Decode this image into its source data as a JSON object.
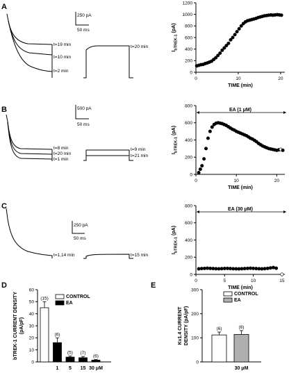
{
  "figure": {
    "panel_labels": [
      "A",
      "B",
      "C",
      "D",
      "E"
    ]
  },
  "traces": {
    "A": {
      "scale_current": "250 pA",
      "scale_time": "50 ms",
      "left_labels": [
        "t=19 min",
        "t=10 min",
        "t=2 min"
      ],
      "right_labels": [
        "t=20 min"
      ]
    },
    "B": {
      "scale_current": "500 pA",
      "scale_time": "50 ms",
      "left_labels": [
        "t=8 min",
        "t=20 min",
        "t=1 min"
      ],
      "right_labels": [
        "t=9 min",
        "t=21 min"
      ]
    },
    "C": {
      "scale_current": "250 pA",
      "scale_time": "50 ms",
      "left_labels": [
        "t=1,14 min"
      ],
      "right_labels": [
        "t=15 min"
      ]
    }
  },
  "chart_data": [
    {
      "id": "A",
      "type": "scatter",
      "ylabel_main": "I",
      "ylabel_sub": "bTREK-1",
      "ylabel_unit": "(pA)",
      "xlabel": "TIME (min)",
      "xlim": [
        0,
        21
      ],
      "ylim": [
        0,
        1200
      ],
      "xticks": [
        0,
        10,
        20
      ],
      "yticks": [
        0,
        200,
        400,
        600,
        800,
        1000,
        1200
      ],
      "annotation": "",
      "x": [
        0.2,
        0.7,
        1.2,
        1.7,
        2.2,
        2.7,
        3.2,
        3.7,
        4.2,
        4.7,
        5.2,
        5.7,
        6.2,
        6.7,
        7.2,
        7.7,
        8.2,
        8.7,
        9.2,
        9.7,
        10.2,
        10.7,
        11.2,
        11.7,
        12.2,
        12.7,
        13.2,
        13.7,
        14.2,
        14.7,
        15.2,
        15.7,
        16.2,
        16.7,
        17.2,
        17.7,
        18.2,
        18.7,
        19.2,
        19.7,
        20.2
      ],
      "y": [
        110,
        120,
        130,
        135,
        150,
        160,
        175,
        190,
        220,
        250,
        290,
        330,
        380,
        420,
        460,
        500,
        560,
        600,
        650,
        700,
        750,
        800,
        840,
        870,
        890,
        900,
        910,
        920,
        930,
        945,
        955,
        965,
        975,
        980,
        985,
        990,
        985,
        990,
        995,
        990,
        985
      ]
    },
    {
      "id": "B",
      "type": "scatter",
      "ylabel_main": "I",
      "ylabel_sub": "bTREK-1",
      "ylabel_unit": "(pA)",
      "xlabel": "TIME (min)",
      "xlim": [
        0,
        22
      ],
      "ylim": [
        0,
        800
      ],
      "xticks": [
        0,
        10,
        20
      ],
      "yticks": [
        0,
        200,
        400,
        600,
        800
      ],
      "annotation": "EA (1 μM)",
      "x": [
        0.7,
        1.1,
        1.5,
        2.0,
        2.5,
        3.0,
        3.5,
        4.0,
        4.5,
        5.0,
        5.5,
        6.0,
        6.5,
        7.0,
        7.5,
        8.0,
        8.5,
        9.0,
        9.5,
        10.0,
        10.5,
        11.0,
        11.5,
        12.0,
        12.5,
        13.0,
        13.5,
        14.0,
        14.5,
        15.0,
        15.5,
        16.0,
        16.5,
        17.0,
        17.5,
        18.0,
        18.5,
        19.0,
        19.5,
        20.0,
        20.5,
        21.0,
        21.5
      ],
      "y": [
        20,
        60,
        100,
        180,
        300,
        420,
        500,
        550,
        580,
        595,
        600,
        595,
        590,
        580,
        570,
        555,
        540,
        525,
        515,
        500,
        490,
        480,
        470,
        460,
        450,
        435,
        420,
        410,
        395,
        380,
        360,
        345,
        330,
        320,
        310,
        300,
        295,
        290,
        285,
        280,
        285,
        290,
        280
      ]
    },
    {
      "id": "C",
      "type": "scatter",
      "ylabel_main": "I",
      "ylabel_sub": "bTREK-1",
      "ylabel_unit": "(pA)",
      "xlabel": "TIME (min)",
      "xlim": [
        0,
        15.5
      ],
      "ylim": [
        0,
        800
      ],
      "xticks": [
        0,
        5,
        10,
        15
      ],
      "yticks": [
        0,
        200,
        400,
        600,
        800
      ],
      "annotation": "EA (30 μM)",
      "x": [
        0.5,
        1.0,
        1.5,
        2.0,
        2.5,
        3.0,
        3.5,
        4.0,
        4.5,
        5.0,
        5.5,
        6.0,
        6.5,
        7.0,
        7.5,
        8.0,
        8.5,
        9.0,
        9.5,
        10.0,
        10.5,
        11.0,
        11.5,
        12.0,
        12.5,
        13.0,
        13.5,
        14.0,
        15.0
      ],
      "y": [
        65,
        68,
        70,
        72,
        70,
        68,
        66,
        65,
        67,
        69,
        70,
        68,
        66,
        65,
        64,
        66,
        68,
        70,
        72,
        70,
        68,
        66,
        65,
        67,
        70,
        75,
        80,
        72,
        0
      ]
    },
    {
      "id": "D",
      "type": "bar",
      "ylabel": "bTREK-1 CURRENT DENSITY (pA/pF)",
      "ylim": [
        0,
        60
      ],
      "yticks": [
        0,
        10,
        20,
        30,
        40,
        50,
        60
      ],
      "legend": [
        "CONTROL",
        "EA"
      ],
      "categories": [
        "",
        "1",
        "5",
        "15",
        "30 μM"
      ],
      "values": [
        45,
        16,
        4,
        3.5,
        1.5
      ],
      "errors": [
        5,
        4,
        1,
        1,
        0.5
      ],
      "n_labels": [
        "(15)",
        "(6)",
        "(5)",
        "(7)",
        "(6)"
      ],
      "colors": [
        "#ffffff",
        "#000000",
        "#000000",
        "#000000",
        "#000000"
      ]
    },
    {
      "id": "E",
      "type": "bar",
      "ylabel": "Kv1.4 CURRENT DENSITY (pA/pF)",
      "ylim": [
        0,
        300
      ],
      "yticks": [
        0,
        100,
        200,
        300
      ],
      "legend": [
        "CONTROL",
        "EA"
      ],
      "categories": [
        "",
        "30 μM"
      ],
      "values": [
        112,
        114
      ],
      "errors": [
        12,
        16
      ],
      "n_labels": [
        "(6)",
        "(6)"
      ],
      "colors": [
        "#ffffff",
        "#b0b0b0"
      ]
    }
  ]
}
